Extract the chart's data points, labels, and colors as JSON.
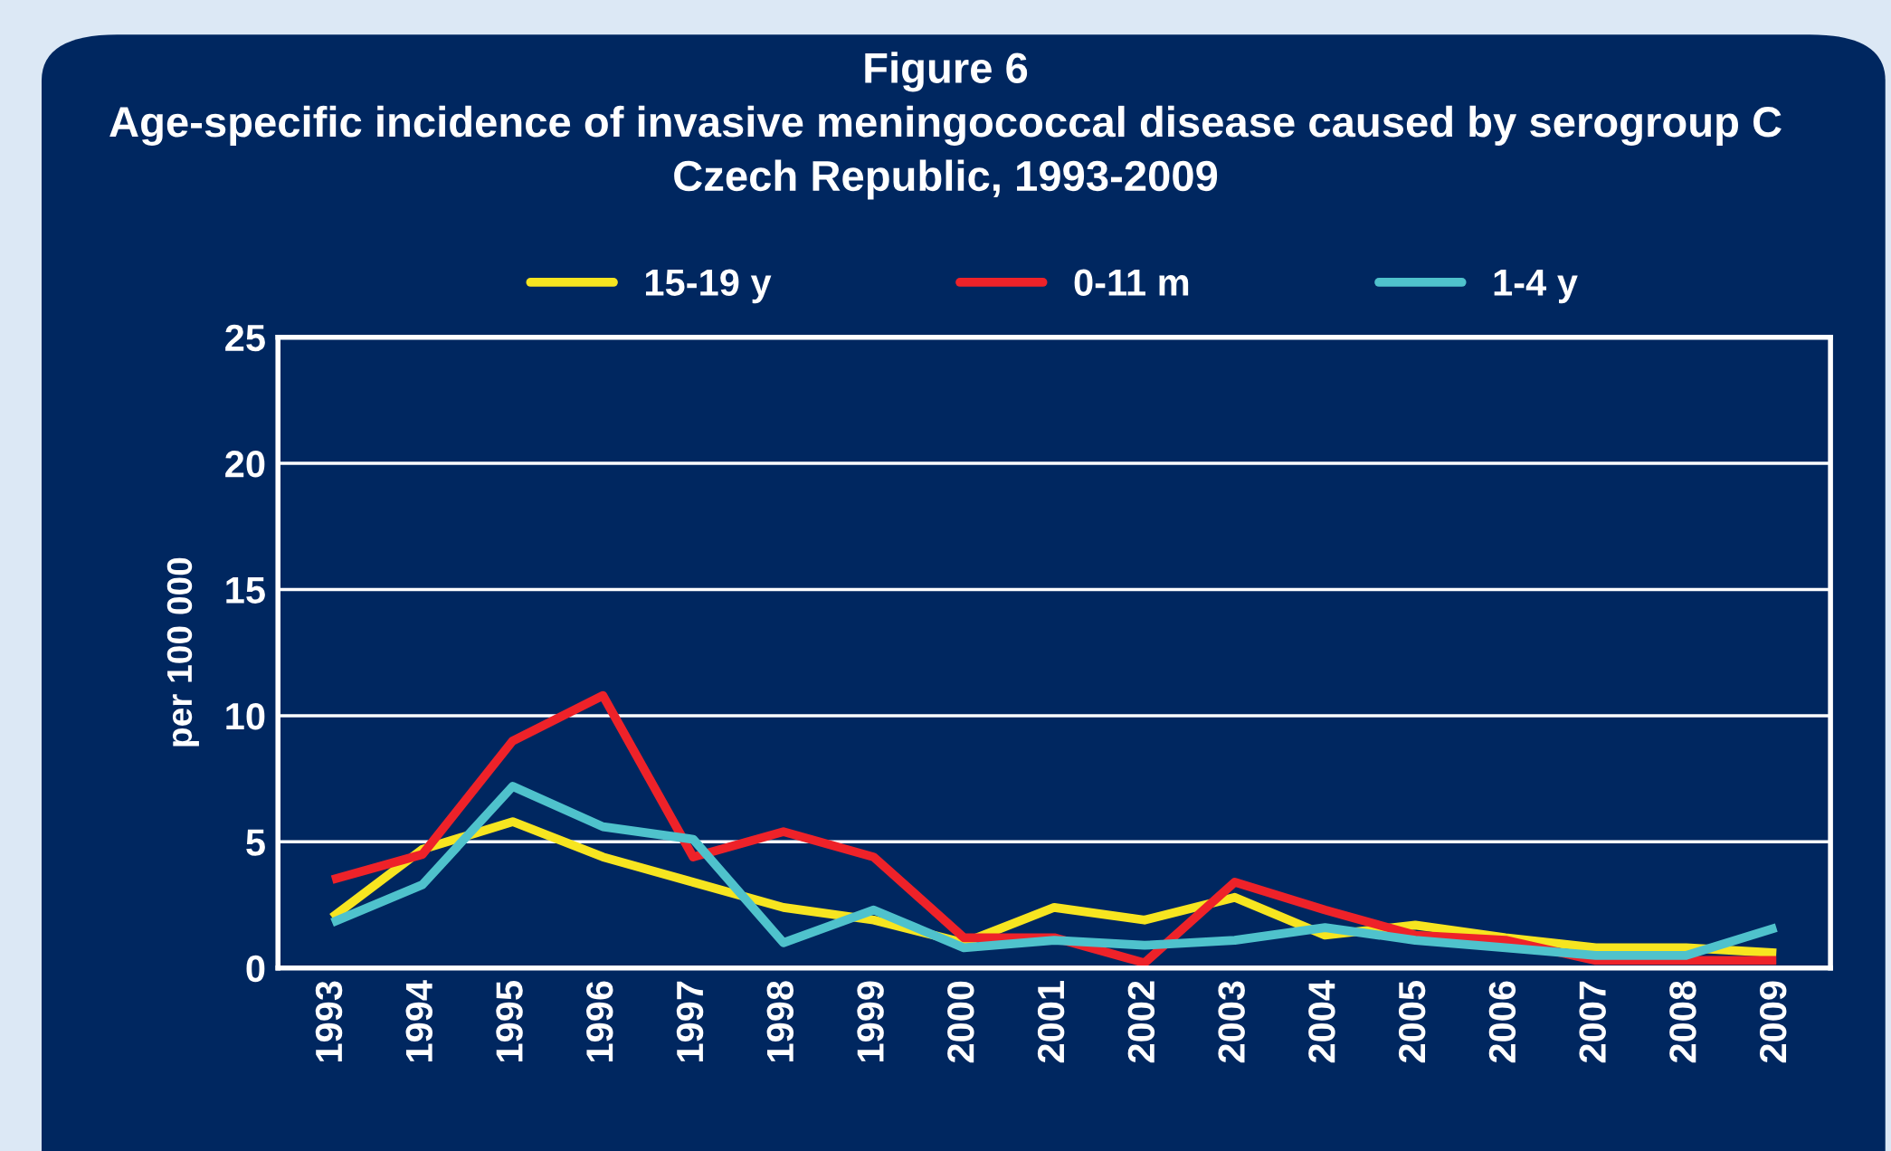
{
  "chart_data": {
    "type": "line",
    "title": "Figure 6\nAge-specific incidence of invasive meningococcal disease caused by serogroup C\nCzech Republic, 1993-2009",
    "ylabel": "per 100 000",
    "categories": [
      "1993",
      "1994",
      "1995",
      "1996",
      "1997",
      "1998",
      "1999",
      "2000",
      "2001",
      "2002",
      "2003",
      "2004",
      "2005",
      "2006",
      "2007",
      "2008",
      "2009"
    ],
    "series": [
      {
        "name": "15-19 y",
        "color": "#f7e520",
        "values": [
          2.0,
          4.7,
          5.8,
          4.4,
          3.4,
          2.4,
          1.9,
          1.0,
          2.4,
          1.9,
          2.8,
          1.3,
          1.7,
          1.2,
          0.8,
          0.8,
          0.6
        ]
      },
      {
        "name": "0-11 m",
        "color": "#ee2229",
        "values": [
          3.5,
          4.5,
          9.0,
          10.8,
          4.4,
          5.4,
          4.4,
          1.2,
          1.2,
          0.2,
          3.4,
          2.3,
          1.3,
          1.1,
          0.3,
          0.3,
          0.3
        ]
      },
      {
        "name": "1-4 y",
        "color": "#4fc2cc",
        "values": [
          1.8,
          3.3,
          7.2,
          5.6,
          5.1,
          1.0,
          2.3,
          0.8,
          1.1,
          0.9,
          1.1,
          1.6,
          1.1,
          0.8,
          0.5,
          0.5,
          1.6
        ]
      }
    ],
    "ylim": [
      0,
      25
    ],
    "yticks": [
      0,
      5,
      10,
      15,
      20,
      25
    ],
    "grid": "y",
    "legend": "top",
    "marker": "none",
    "line_style": "solid"
  }
}
